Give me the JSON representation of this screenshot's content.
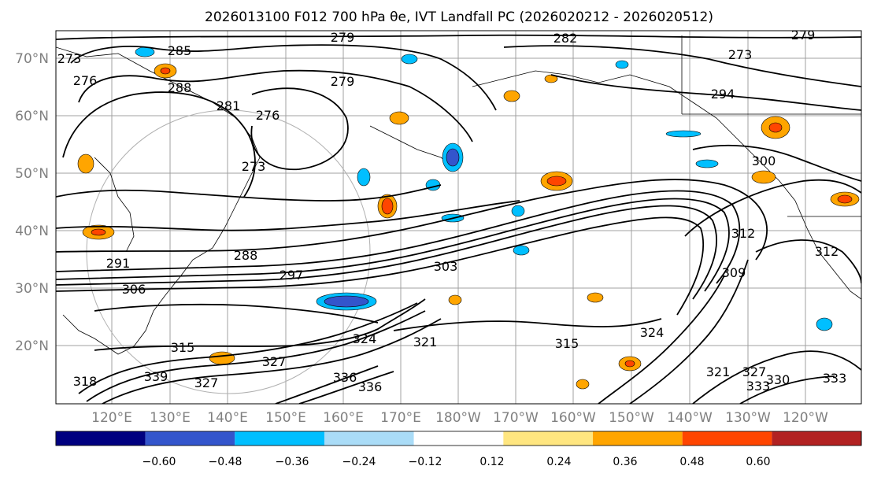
{
  "title": "2026013100 F012 700 hPa θe, IVT Landfall PC (2026020212 - 2026020512)",
  "lat_labels": [
    "70°N",
    "60°N",
    "50°N",
    "40°N",
    "30°N",
    "20°N"
  ],
  "lon_labels": [
    "120°E",
    "130°E",
    "140°E",
    "150°E",
    "160°E",
    "170°E",
    "180°W",
    "170°W",
    "160°W",
    "150°W",
    "140°W",
    "130°W",
    "120°W"
  ],
  "colorbar": {
    "colors": [
      "#9933cc",
      "#000080",
      "#3355cc",
      "#00bfff",
      "#aadcf7",
      "#ffffff",
      "#ffe680",
      "#ffa500",
      "#ff4500",
      "#b22222",
      "#f78fb3"
    ],
    "ticks": [
      "−0.60",
      "−0.48",
      "−0.36",
      "−0.24",
      "−0.12",
      "0.12",
      "0.24",
      "0.36",
      "0.48",
      "0.60"
    ]
  },
  "contour_labels": [
    "279",
    "282",
    "279",
    "273",
    "276",
    "285",
    "288",
    "279",
    "276",
    "294",
    "300",
    "273",
    "273",
    "281",
    "291",
    "288",
    "297",
    "303",
    "306",
    "312",
    "309",
    "312",
    "315",
    "324",
    "321",
    "315",
    "324",
    "321",
    "327",
    "330",
    "333",
    "336",
    "327",
    "318",
    "339",
    "327",
    "333",
    "336"
  ]
}
